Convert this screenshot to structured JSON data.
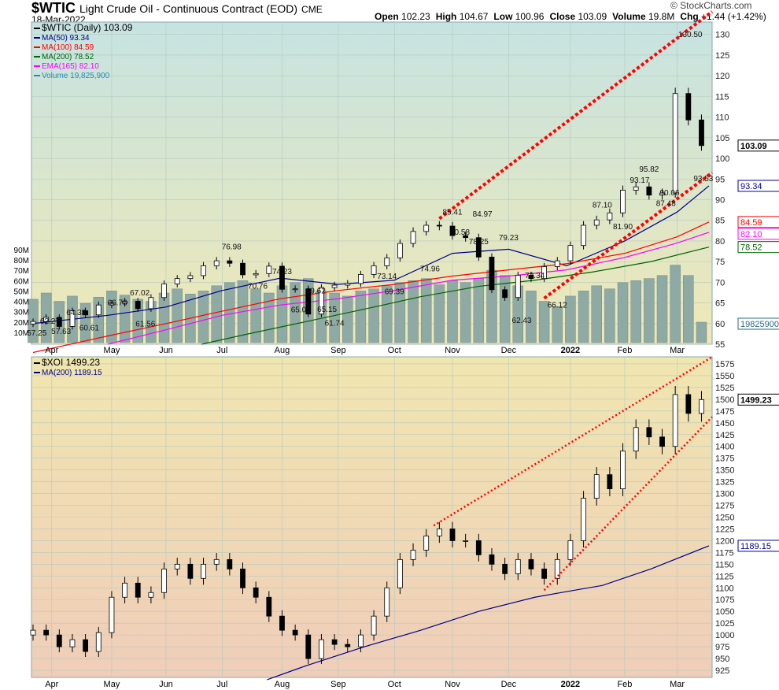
{
  "header": {
    "symbol": "$WTIC",
    "name": "Light Crude Oil - Continuous Contract (EOD)",
    "exchange": "CME",
    "date": "18-Mar-2022",
    "watermark": "© StockCharts.com",
    "quote": [
      {
        "k": "Open",
        "v": "102.23"
      },
      {
        "k": "High",
        "v": "104.67"
      },
      {
        "k": "Low",
        "v": "100.96"
      },
      {
        "k": "Close",
        "v": "103.09"
      },
      {
        "k": "Volume",
        "v": "19.8M"
      },
      {
        "k": "Chg",
        "v": "+1.44 (+1.42%)"
      }
    ]
  },
  "chart_data": [
    {
      "type": "line",
      "symbol": "$WTIC",
      "legend": [
        {
          "text": "$WTIC (Daily) 103.09",
          "color": "#000000"
        },
        {
          "text": "MA(50) 93.34",
          "color": "#00008b"
        },
        {
          "text": "MA(100) 84.59",
          "color": "#ff0000"
        },
        {
          "text": "MA(200) 78.52",
          "color": "#006400"
        },
        {
          "text": "EMA(165) 82.10",
          "color": "#ff00ff"
        },
        {
          "text": "Volume 19,825,900",
          "color": "#2a8ab0"
        }
      ],
      "ylim": [
        55,
        133
      ],
      "yticks": [
        55,
        60,
        65,
        70,
        75,
        80,
        85,
        90,
        95,
        100,
        105,
        110,
        115,
        120,
        125,
        130
      ],
      "vol_ticks": [
        "10M",
        "20M",
        "30M",
        "40M",
        "50M",
        "60M",
        "70M",
        "80M",
        "90M"
      ],
      "dates": [
        "2021-03-22",
        "2021-03-29",
        "2021-04-05",
        "2021-04-12",
        "2021-04-19",
        "2021-04-26",
        "2021-05-03",
        "2021-05-10",
        "2021-05-17",
        "2021-05-24",
        "2021-05-31",
        "2021-06-07",
        "2021-06-14",
        "2021-06-21",
        "2021-06-28",
        "2021-07-05",
        "2021-07-12",
        "2021-07-19",
        "2021-07-26",
        "2021-08-02",
        "2021-08-09",
        "2021-08-16",
        "2021-08-23",
        "2021-08-30",
        "2021-09-06",
        "2021-09-13",
        "2021-09-20",
        "2021-09-27",
        "2021-10-04",
        "2021-10-11",
        "2021-10-18",
        "2021-10-25",
        "2021-11-01",
        "2021-11-08",
        "2021-11-15",
        "2021-11-22",
        "2021-11-29",
        "2021-12-06",
        "2021-12-13",
        "2021-12-20",
        "2021-12-27",
        "2022-01-03",
        "2022-01-10",
        "2022-01-17",
        "2022-01-24",
        "2022-01-31",
        "2022-02-07",
        "2022-02-14",
        "2022-02-21",
        "2022-02-28",
        "2022-03-07",
        "2022-03-14"
      ],
      "close": [
        60.5,
        61.5,
        59.3,
        63.1,
        62.1,
        64.5,
        64.9,
        65.4,
        63.6,
        66.3,
        69.6,
        70.9,
        71.6,
        74.0,
        75.2,
        74.6,
        71.8,
        72.1,
        73.9,
        68.3,
        68.4,
        62.3,
        68.7,
        69.3,
        69.7,
        71.9,
        74.0,
        75.9,
        79.4,
        82.3,
        83.8,
        83.6,
        81.3,
        80.8,
        76.1,
        68.2,
        66.3,
        71.7,
        70.9,
        73.8,
        75.2,
        78.9,
        83.8,
        85.1,
        86.8,
        92.3,
        93.1,
        91.1,
        91.6,
        115.7,
        109.3,
        103.09
      ],
      "volume_m": [
        42,
        48,
        40,
        45,
        38,
        44,
        50,
        46,
        42,
        40,
        48,
        52,
        47,
        50,
        55,
        58,
        60,
        52,
        48,
        55,
        58,
        62,
        50,
        48,
        45,
        50,
        52,
        55,
        58,
        60,
        62,
        56,
        60,
        58,
        62,
        70,
        65,
        55,
        50,
        40,
        35,
        45,
        50,
        55,
        52,
        58,
        60,
        62,
        65,
        75,
        65,
        19.8
      ],
      "ma": [
        {
          "name": "MA(50)",
          "color": "#00008b",
          "last": "93.34",
          "points": [
            [
              "2021-03-22",
              60
            ],
            [
              "2021-05-01",
              62
            ],
            [
              "2021-06-01",
              64
            ],
            [
              "2021-07-01",
              68
            ],
            [
              "2021-08-01",
              71
            ],
            [
              "2021-09-01",
              69.5
            ],
            [
              "2021-10-01",
              70.5
            ],
            [
              "2021-11-01",
              77
            ],
            [
              "2021-12-01",
              78
            ],
            [
              "2022-01-01",
              74
            ],
            [
              "2022-02-01",
              80
            ],
            [
              "2022-03-01",
              87
            ],
            [
              "2022-03-18",
              93.34
            ]
          ]
        },
        {
          "name": "MA(100)",
          "color": "#ff0000",
          "last": "84.59",
          "points": [
            [
              "2021-03-22",
              53
            ],
            [
              "2021-05-01",
              57
            ],
            [
              "2021-06-01",
              60
            ],
            [
              "2021-07-01",
              63
            ],
            [
              "2021-08-01",
              66
            ],
            [
              "2021-09-01",
              68
            ],
            [
              "2021-10-01",
              69.5
            ],
            [
              "2021-11-01",
              71.5
            ],
            [
              "2021-12-01",
              73
            ],
            [
              "2022-01-01",
              74.5
            ],
            [
              "2022-02-01",
              77
            ],
            [
              "2022-03-01",
              81
            ],
            [
              "2022-03-18",
              84.59
            ]
          ]
        },
        {
          "name": "MA(200)",
          "color": "#006400",
          "last": "78.52",
          "points": [
            [
              "2021-06-20",
              55
            ],
            [
              "2021-07-15",
              57.5
            ],
            [
              "2021-08-15",
              60.5
            ],
            [
              "2021-09-15",
              63.5
            ],
            [
              "2021-10-15",
              66.5
            ],
            [
              "2021-11-15",
              69
            ],
            [
              "2021-12-15",
              70.5
            ],
            [
              "2022-01-15",
              72.5
            ],
            [
              "2022-02-15",
              75
            ],
            [
              "2022-03-18",
              78.52
            ]
          ]
        },
        {
          "name": "EMA(165)",
          "color": "#ff00ff",
          "last": "82.10",
          "points": [
            [
              "2021-05-01",
              55
            ],
            [
              "2021-06-01",
              58.5
            ],
            [
              "2021-07-01",
              62
            ],
            [
              "2021-08-01",
              64.5
            ],
            [
              "2021-09-01",
              66
            ],
            [
              "2021-10-01",
              68
            ],
            [
              "2021-11-01",
              70.5
            ],
            [
              "2021-12-01",
              71.5
            ],
            [
              "2022-01-01",
              73
            ],
            [
              "2022-02-01",
              76
            ],
            [
              "2022-03-01",
              79.5
            ],
            [
              "2022-03-18",
              82.1
            ]
          ]
        }
      ],
      "annotations": [
        [
          "2021-03-24",
          "57.25"
        ],
        [
          "2021-03-31",
          "62.27"
        ],
        [
          "2021-04-06",
          "57.63"
        ],
        [
          "2021-04-14",
          "64.38"
        ],
        [
          "2021-04-21",
          "60.61"
        ],
        [
          "2021-05-06",
          "66.76"
        ],
        [
          "2021-05-18",
          "67.02"
        ],
        [
          "2021-05-21",
          "61.56"
        ],
        [
          "2021-07-06",
          "76.98"
        ],
        [
          "2021-07-20",
          "70.76"
        ],
        [
          "2021-08-02",
          "74.23"
        ],
        [
          "2021-08-12",
          "65.01"
        ],
        [
          "2021-08-20",
          "69.62"
        ],
        [
          "2021-08-26",
          "65.15"
        ],
        [
          "2021-08-30",
          "61.74"
        ],
        [
          "2021-09-27",
          "73.14"
        ],
        [
          "2021-10-01",
          "69.39"
        ],
        [
          "2021-10-20",
          "74.96"
        ],
        [
          "2021-11-01",
          "85.41"
        ],
        [
          "2021-11-05",
          "80.58"
        ],
        [
          "2021-11-15",
          "78.25"
        ],
        [
          "2021-11-17",
          "84.97"
        ],
        [
          "2021-12-01",
          "79.23"
        ],
        [
          "2021-12-15",
          "73.34"
        ],
        [
          "2021-12-08",
          "62.43"
        ],
        [
          "2021-12-27",
          "66.12"
        ],
        [
          "2022-01-20",
          "87.10"
        ],
        [
          "2022-01-31",
          "81.90"
        ],
        [
          "2022-02-09",
          "93.17"
        ],
        [
          "2022-02-14",
          "95.82"
        ],
        [
          "2022-02-23",
          "87.48"
        ],
        [
          "2022-02-25",
          "90.06"
        ],
        [
          "2022-03-08",
          "130.50"
        ],
        [
          "2022-03-15",
          "93.53"
        ]
      ],
      "trendlines": [
        [
          [
            "2021-10-25",
            85.41
          ],
          [
            "2022-03-24",
            137
          ]
        ],
        [
          [
            "2021-12-20",
            66.12
          ],
          [
            "2022-03-24",
            98
          ]
        ]
      ],
      "last_label": "103.09",
      "vol_label": "19825900"
    },
    {
      "type": "line",
      "symbol": "$XOI",
      "legend": [
        {
          "text": "$XOI 1499.23",
          "color": "#000000"
        },
        {
          "text": "MA(200) 1189.15",
          "color": "#00008b"
        }
      ],
      "ylim": [
        910,
        1590
      ],
      "yticks": [
        925,
        950,
        975,
        1000,
        1025,
        1050,
        1075,
        1100,
        1125,
        1150,
        1175,
        1200,
        1225,
        1250,
        1275,
        1300,
        1325,
        1350,
        1375,
        1400,
        1425,
        1450,
        1475,
        1500,
        1525,
        1550,
        1575
      ],
      "close": [
        1010,
        1000,
        975,
        990,
        965,
        1005,
        1080,
        1110,
        1080,
        1090,
        1140,
        1150,
        1120,
        1150,
        1160,
        1140,
        1100,
        1080,
        1040,
        1010,
        1000,
        950,
        990,
        980,
        975,
        1000,
        1040,
        1100,
        1160,
        1180,
        1210,
        1225,
        1200,
        1200,
        1170,
        1150,
        1130,
        1160,
        1140,
        1120,
        1160,
        1200,
        1290,
        1340,
        1310,
        1390,
        1440,
        1420,
        1400,
        1510,
        1470,
        1499.23
      ],
      "ma": [
        {
          "name": "MA(200)",
          "color": "#00008b",
          "last": "1189.15",
          "points": [
            [
              "2021-07-25",
              905
            ],
            [
              "2021-08-15",
              935
            ],
            [
              "2021-09-15",
              975
            ],
            [
              "2021-10-15",
              1010
            ],
            [
              "2021-11-15",
              1050
            ],
            [
              "2021-12-15",
              1080
            ],
            [
              "2022-01-01",
              1092
            ],
            [
              "2022-01-20",
              1105
            ],
            [
              "2022-02-15",
              1140
            ],
            [
              "2022-03-18",
              1189.15
            ]
          ]
        }
      ],
      "trendlines": [
        [
          [
            "2021-10-22",
            1232
          ],
          [
            "2022-03-24",
            1600
          ]
        ],
        [
          [
            "2021-12-20",
            1095
          ],
          [
            "2022-03-24",
            1480
          ]
        ]
      ],
      "last_label": "1499.23"
    }
  ],
  "xaxis": {
    "ticks": [
      [
        "2021-04-01",
        "Apr"
      ],
      [
        "2021-05-03",
        "May"
      ],
      [
        "2021-06-01",
        "Jun"
      ],
      [
        "2021-07-01",
        "Jul"
      ],
      [
        "2021-08-02",
        "Aug"
      ],
      [
        "2021-09-01",
        "Sep"
      ],
      [
        "2021-10-01",
        "Oct"
      ],
      [
        "2021-11-01",
        "Nov"
      ],
      [
        "2021-12-01",
        "Dec"
      ],
      [
        "2022-01-03",
        "2022"
      ],
      [
        "2022-02-01",
        "Feb"
      ],
      [
        "2022-03-01",
        "Mar"
      ]
    ]
  }
}
